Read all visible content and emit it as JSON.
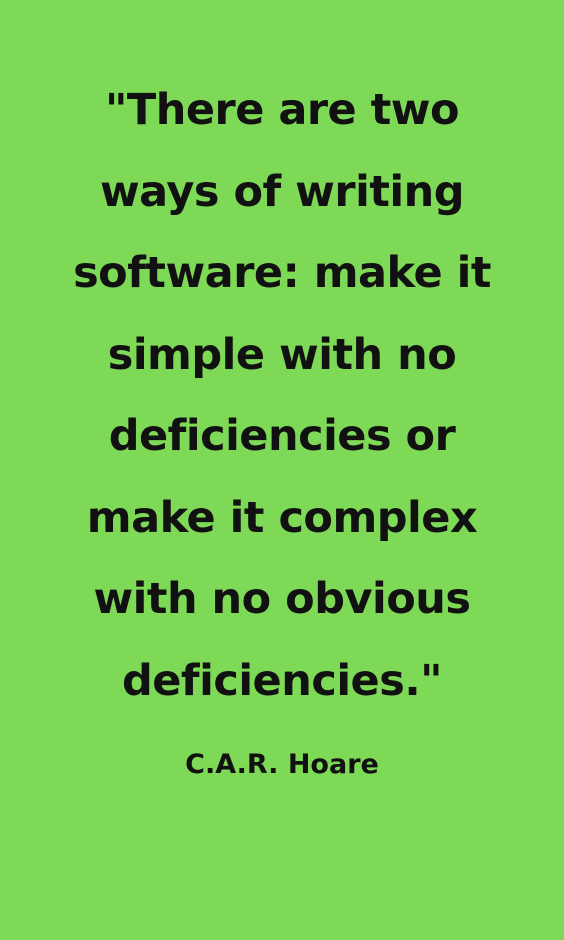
{
  "colors": {
    "background": "#7ed957",
    "text": "#111111"
  },
  "quote": {
    "lines": [
      "\"There are two",
      "ways of writing",
      "software: make it",
      "simple with no",
      "deficiencies or",
      "make it complex",
      "with no obvious",
      "deficiencies.\""
    ],
    "author": "C.A.R. Hoare"
  }
}
